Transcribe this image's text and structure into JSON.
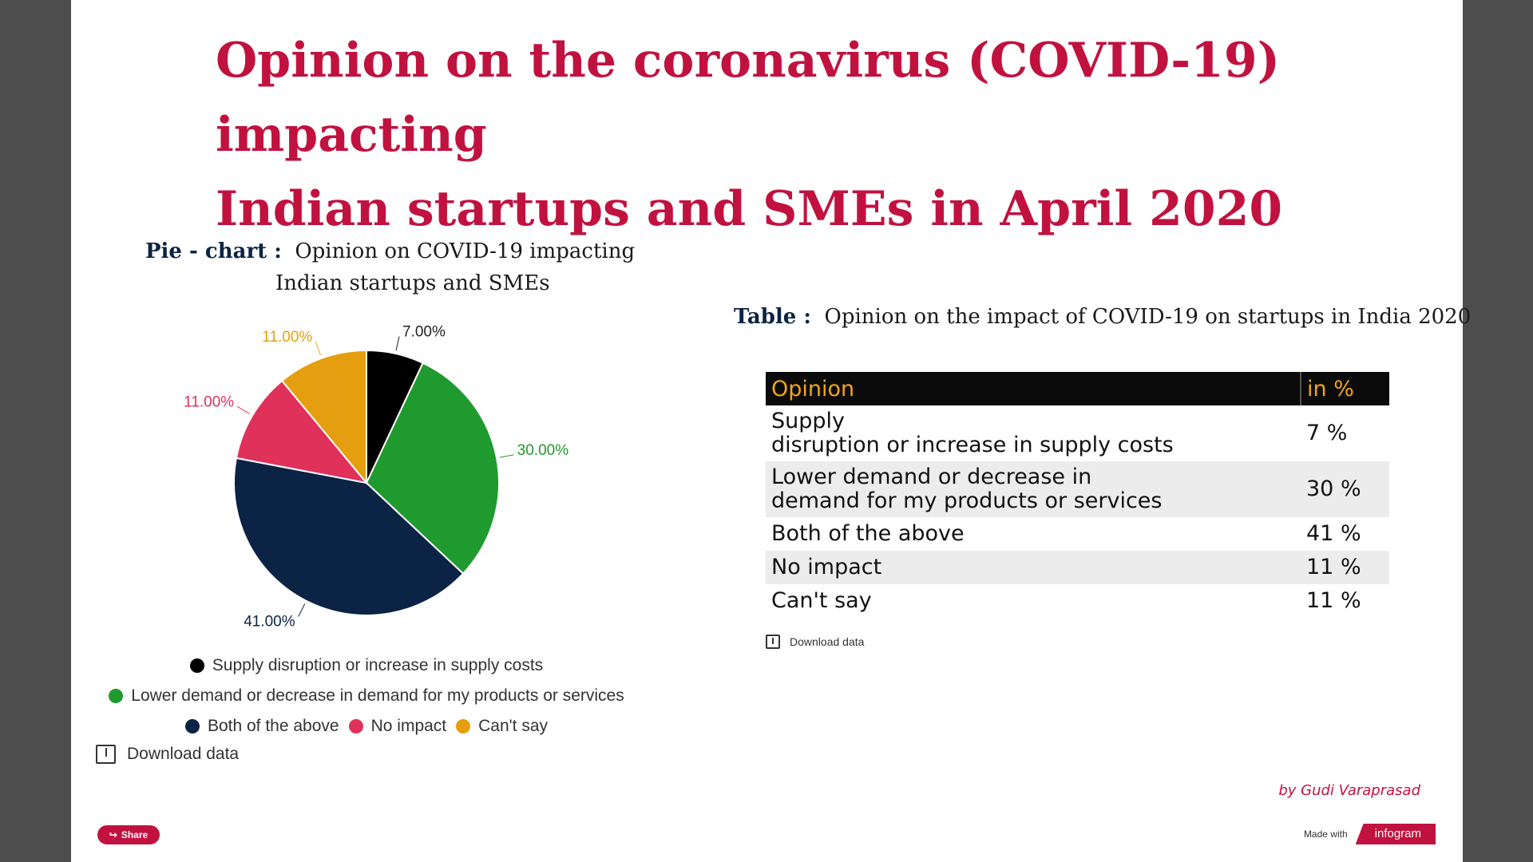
{
  "title": {
    "line1": "Opinion on the coronavirus (COVID-19) impacting",
    "line2": "Indian startups and SMEs in April 2020"
  },
  "pie_caption": {
    "label": "Pie - chart :",
    "line1": "Opinion on COVID-19 impacting",
    "line2": "Indian startups and SMEs"
  },
  "table_caption": {
    "label": "Table :",
    "text": "Opinion on the impact of COVID-19 on startups in India 2020"
  },
  "legend": [
    {
      "label": "Supply disruption or increase in supply costs",
      "color": "#000000"
    },
    {
      "label": "Lower demand or decrease in demand for my products or services",
      "color": "#1f9a2e"
    },
    {
      "label": "Both of the above",
      "color": "#0b2344"
    },
    {
      "label": "No impact",
      "color": "#e0315a"
    },
    {
      "label": "Can't say",
      "color": "#e59e0f"
    }
  ],
  "download_label": "Download data",
  "table": {
    "headers": [
      "Opinion",
      "in %"
    ],
    "rows": [
      {
        "opinion_line1": "Supply",
        "opinion_line2": "disruption or increase in supply costs",
        "value": "7 %"
      },
      {
        "opinion_line1": "Lower demand or decrease in",
        "opinion_line2": "demand for my products or services",
        "value": "30 %"
      },
      {
        "opinion_line1": "Both of the above",
        "opinion_line2": "",
        "value": "41 %"
      },
      {
        "opinion_line1": "No impact",
        "opinion_line2": "",
        "value": "11 %"
      },
      {
        "opinion_line1": "Can't say",
        "opinion_line2": "",
        "value": "11 %"
      }
    ]
  },
  "byline": "by Gudi Varaprasad",
  "share_label": "Share",
  "made_with_label": "Made with",
  "brand": "infogram",
  "chart_data": {
    "type": "pie",
    "categories": [
      "Supply disruption or increase in supply costs",
      "Lower demand or decrease in demand for my products or services",
      "Both of the above",
      "No impact",
      "Can't say"
    ],
    "values": [
      7,
      30,
      41,
      11,
      11
    ],
    "data_labels": [
      "7.00%",
      "30.00%",
      "41.00%",
      "11.00%",
      "11.00%"
    ],
    "colors": [
      "#000000",
      "#1f9a2e",
      "#0b2344",
      "#e0315a",
      "#e59e0f"
    ],
    "label_colors": [
      "#222222",
      "#1f9a2e",
      "#0b2344",
      "#e0315a",
      "#e59e0f"
    ],
    "legend_position": "bottom"
  }
}
